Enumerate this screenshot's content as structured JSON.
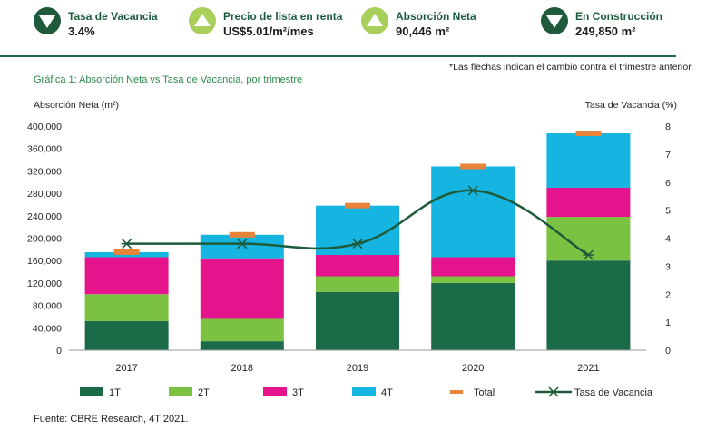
{
  "kpis": [
    {
      "label": "Tasa de Vacancia",
      "value": "3.4%",
      "direction": "down",
      "badge_color": "#1f5a3c"
    },
    {
      "label": "Precio de lista en renta",
      "value": "US$5.01/m²/mes",
      "direction": "up",
      "badge_color": "#a7cf5a"
    },
    {
      "label": "Absorción Neta",
      "value": "90,446 m²",
      "direction": "up",
      "badge_color": "#a7cf5a"
    },
    {
      "label": "En Construcción",
      "value": "249,850 m²",
      "direction": "down",
      "badge_color": "#1f5a3c"
    }
  ],
  "footnote": "*Las flechas indican el cambio contra el trimestre anterior.",
  "source": "Fuente: CBRE Research, 4T 2021.",
  "chart_data": {
    "type": "bar",
    "stacked": true,
    "title": "Gráfica 1: Absorción Neta vs Tasa de Vacancia, por trimestre",
    "ylabel": "Absorción Neta (m²)",
    "y2label": "Tasa de Vacancia (%)",
    "categories": [
      "2017",
      "2018",
      "2019",
      "2020",
      "2021"
    ],
    "ylim": [
      0,
      400000
    ],
    "y2lim": [
      0,
      8
    ],
    "yticks": [
      "400,000",
      "360,000",
      "320,000",
      "280,000",
      "240,000",
      "200,000",
      "160,000",
      "120,000",
      "80,000",
      "40,000",
      "0"
    ],
    "y2ticks": [
      "8",
      "7",
      "6",
      "5",
      "4",
      "3",
      "2",
      "1",
      "0"
    ],
    "series": [
      {
        "name": "1T",
        "color": "#1c6b48",
        "values": [
          52000,
          16000,
          104000,
          120000,
          160000
        ]
      },
      {
        "name": "2T",
        "color": "#7cc242",
        "values": [
          48000,
          40000,
          28000,
          12000,
          78000
        ]
      },
      {
        "name": "3T",
        "color": "#e5148c",
        "values": [
          66000,
          108000,
          38000,
          34000,
          52000
        ]
      },
      {
        "name": "4T",
        "color": "#16b4e0",
        "values": [
          9000,
          42000,
          88000,
          162000,
          97000
        ]
      }
    ],
    "totals": {
      "name": "Total",
      "color": "#e8833a",
      "values": [
        175000,
        206000,
        258000,
        328000,
        387000
      ]
    },
    "line": {
      "name": "Tasa de Vacancia",
      "color": "#1c5a3a",
      "values": [
        3.8,
        3.8,
        3.8,
        5.7,
        3.4
      ]
    },
    "legend": [
      "1T",
      "2T",
      "3T",
      "4T",
      "Total",
      "Tasa de Vacancia"
    ],
    "legend_position": "bottom"
  }
}
